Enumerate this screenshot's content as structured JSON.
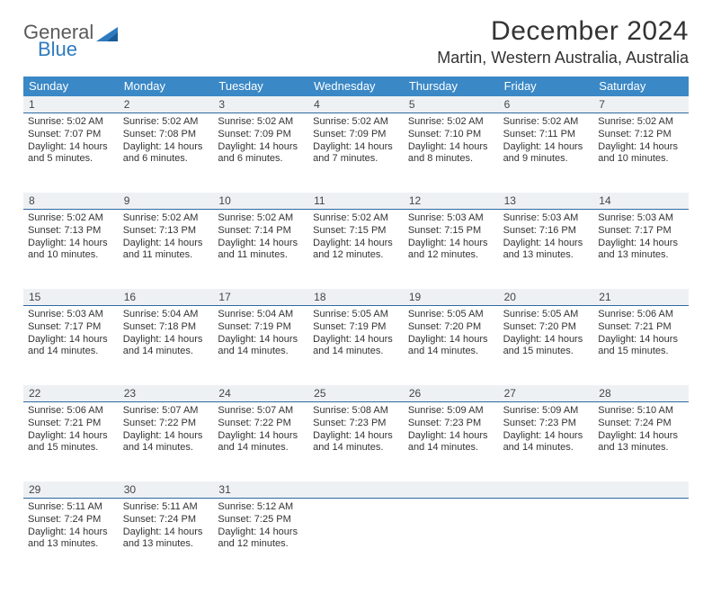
{
  "brand": {
    "word1": "General",
    "word2": "Blue"
  },
  "header": {
    "title": "December 2024",
    "location": "Martin, Western Australia, Australia"
  },
  "colors": {
    "header_bg": "#3a88c6",
    "daynum_bg": "#eef1f3",
    "rule": "#2f6aa3",
    "text": "#333333",
    "logo_gray": "#5a5a5a",
    "logo_blue": "#2f7bbf",
    "page_bg": "#ffffff"
  },
  "dayHeaders": [
    "Sunday",
    "Monday",
    "Tuesday",
    "Wednesday",
    "Thursday",
    "Friday",
    "Saturday"
  ],
  "weeks": [
    [
      {
        "n": "1",
        "sunrise": "Sunrise: 5:02 AM",
        "sunset": "Sunset: 7:07 PM",
        "day1": "Daylight: 14 hours",
        "day2": "and 5 minutes."
      },
      {
        "n": "2",
        "sunrise": "Sunrise: 5:02 AM",
        "sunset": "Sunset: 7:08 PM",
        "day1": "Daylight: 14 hours",
        "day2": "and 6 minutes."
      },
      {
        "n": "3",
        "sunrise": "Sunrise: 5:02 AM",
        "sunset": "Sunset: 7:09 PM",
        "day1": "Daylight: 14 hours",
        "day2": "and 6 minutes."
      },
      {
        "n": "4",
        "sunrise": "Sunrise: 5:02 AM",
        "sunset": "Sunset: 7:09 PM",
        "day1": "Daylight: 14 hours",
        "day2": "and 7 minutes."
      },
      {
        "n": "5",
        "sunrise": "Sunrise: 5:02 AM",
        "sunset": "Sunset: 7:10 PM",
        "day1": "Daylight: 14 hours",
        "day2": "and 8 minutes."
      },
      {
        "n": "6",
        "sunrise": "Sunrise: 5:02 AM",
        "sunset": "Sunset: 7:11 PM",
        "day1": "Daylight: 14 hours",
        "day2": "and 9 minutes."
      },
      {
        "n": "7",
        "sunrise": "Sunrise: 5:02 AM",
        "sunset": "Sunset: 7:12 PM",
        "day1": "Daylight: 14 hours",
        "day2": "and 10 minutes."
      }
    ],
    [
      {
        "n": "8",
        "sunrise": "Sunrise: 5:02 AM",
        "sunset": "Sunset: 7:13 PM",
        "day1": "Daylight: 14 hours",
        "day2": "and 10 minutes."
      },
      {
        "n": "9",
        "sunrise": "Sunrise: 5:02 AM",
        "sunset": "Sunset: 7:13 PM",
        "day1": "Daylight: 14 hours",
        "day2": "and 11 minutes."
      },
      {
        "n": "10",
        "sunrise": "Sunrise: 5:02 AM",
        "sunset": "Sunset: 7:14 PM",
        "day1": "Daylight: 14 hours",
        "day2": "and 11 minutes."
      },
      {
        "n": "11",
        "sunrise": "Sunrise: 5:02 AM",
        "sunset": "Sunset: 7:15 PM",
        "day1": "Daylight: 14 hours",
        "day2": "and 12 minutes."
      },
      {
        "n": "12",
        "sunrise": "Sunrise: 5:03 AM",
        "sunset": "Sunset: 7:15 PM",
        "day1": "Daylight: 14 hours",
        "day2": "and 12 minutes."
      },
      {
        "n": "13",
        "sunrise": "Sunrise: 5:03 AM",
        "sunset": "Sunset: 7:16 PM",
        "day1": "Daylight: 14 hours",
        "day2": "and 13 minutes."
      },
      {
        "n": "14",
        "sunrise": "Sunrise: 5:03 AM",
        "sunset": "Sunset: 7:17 PM",
        "day1": "Daylight: 14 hours",
        "day2": "and 13 minutes."
      }
    ],
    [
      {
        "n": "15",
        "sunrise": "Sunrise: 5:03 AM",
        "sunset": "Sunset: 7:17 PM",
        "day1": "Daylight: 14 hours",
        "day2": "and 14 minutes."
      },
      {
        "n": "16",
        "sunrise": "Sunrise: 5:04 AM",
        "sunset": "Sunset: 7:18 PM",
        "day1": "Daylight: 14 hours",
        "day2": "and 14 minutes."
      },
      {
        "n": "17",
        "sunrise": "Sunrise: 5:04 AM",
        "sunset": "Sunset: 7:19 PM",
        "day1": "Daylight: 14 hours",
        "day2": "and 14 minutes."
      },
      {
        "n": "18",
        "sunrise": "Sunrise: 5:05 AM",
        "sunset": "Sunset: 7:19 PM",
        "day1": "Daylight: 14 hours",
        "day2": "and 14 minutes."
      },
      {
        "n": "19",
        "sunrise": "Sunrise: 5:05 AM",
        "sunset": "Sunset: 7:20 PM",
        "day1": "Daylight: 14 hours",
        "day2": "and 14 minutes."
      },
      {
        "n": "20",
        "sunrise": "Sunrise: 5:05 AM",
        "sunset": "Sunset: 7:20 PM",
        "day1": "Daylight: 14 hours",
        "day2": "and 15 minutes."
      },
      {
        "n": "21",
        "sunrise": "Sunrise: 5:06 AM",
        "sunset": "Sunset: 7:21 PM",
        "day1": "Daylight: 14 hours",
        "day2": "and 15 minutes."
      }
    ],
    [
      {
        "n": "22",
        "sunrise": "Sunrise: 5:06 AM",
        "sunset": "Sunset: 7:21 PM",
        "day1": "Daylight: 14 hours",
        "day2": "and 15 minutes."
      },
      {
        "n": "23",
        "sunrise": "Sunrise: 5:07 AM",
        "sunset": "Sunset: 7:22 PM",
        "day1": "Daylight: 14 hours",
        "day2": "and 14 minutes."
      },
      {
        "n": "24",
        "sunrise": "Sunrise: 5:07 AM",
        "sunset": "Sunset: 7:22 PM",
        "day1": "Daylight: 14 hours",
        "day2": "and 14 minutes."
      },
      {
        "n": "25",
        "sunrise": "Sunrise: 5:08 AM",
        "sunset": "Sunset: 7:23 PM",
        "day1": "Daylight: 14 hours",
        "day2": "and 14 minutes."
      },
      {
        "n": "26",
        "sunrise": "Sunrise: 5:09 AM",
        "sunset": "Sunset: 7:23 PM",
        "day1": "Daylight: 14 hours",
        "day2": "and 14 minutes."
      },
      {
        "n": "27",
        "sunrise": "Sunrise: 5:09 AM",
        "sunset": "Sunset: 7:23 PM",
        "day1": "Daylight: 14 hours",
        "day2": "and 14 minutes."
      },
      {
        "n": "28",
        "sunrise": "Sunrise: 5:10 AM",
        "sunset": "Sunset: 7:24 PM",
        "day1": "Daylight: 14 hours",
        "day2": "and 13 minutes."
      }
    ],
    [
      {
        "n": "29",
        "sunrise": "Sunrise: 5:11 AM",
        "sunset": "Sunset: 7:24 PM",
        "day1": "Daylight: 14 hours",
        "day2": "and 13 minutes."
      },
      {
        "n": "30",
        "sunrise": "Sunrise: 5:11 AM",
        "sunset": "Sunset: 7:24 PM",
        "day1": "Daylight: 14 hours",
        "day2": "and 13 minutes."
      },
      {
        "n": "31",
        "sunrise": "Sunrise: 5:12 AM",
        "sunset": "Sunset: 7:25 PM",
        "day1": "Daylight: 14 hours",
        "day2": "and 12 minutes."
      },
      {
        "n": "",
        "sunrise": "",
        "sunset": "",
        "day1": "",
        "day2": ""
      },
      {
        "n": "",
        "sunrise": "",
        "sunset": "",
        "day1": "",
        "day2": ""
      },
      {
        "n": "",
        "sunrise": "",
        "sunset": "",
        "day1": "",
        "day2": ""
      },
      {
        "n": "",
        "sunrise": "",
        "sunset": "",
        "day1": "",
        "day2": ""
      }
    ]
  ]
}
